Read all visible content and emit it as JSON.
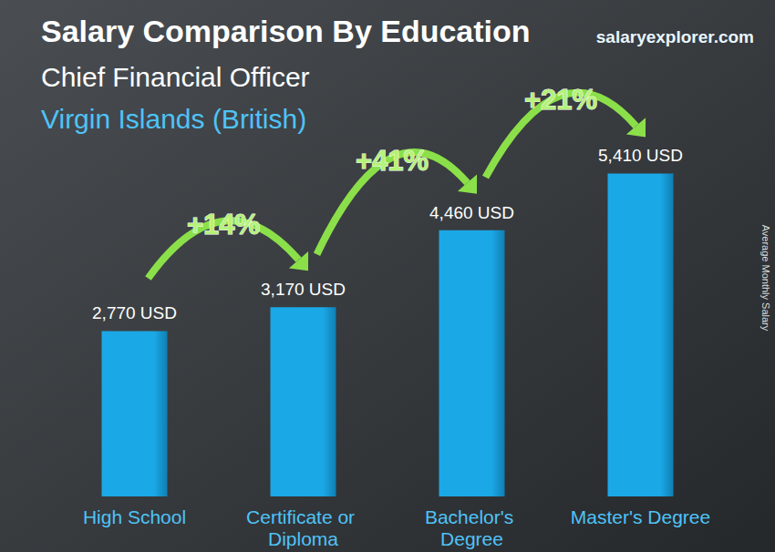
{
  "chart_data": {
    "type": "bar",
    "title": "Salary Comparison By Education",
    "subtitle": "Chief Financial Officer",
    "location": "Virgin Islands (British)",
    "source": "salaryexplorer.com",
    "y_label": "Average Monthly Salary",
    "categories": [
      "High School",
      "Certificate or Diploma",
      "Bachelor's Degree",
      "Master's Degree"
    ],
    "values": [
      2770,
      3170,
      4460,
      5410
    ],
    "value_labels": [
      "2,770 USD",
      "3,170 USD",
      "4,460 USD",
      "5,410 USD"
    ],
    "color": "#1ba8e6",
    "ylim": [
      0,
      6500
    ],
    "data_labels": true,
    "tick_labels": "x",
    "grid": false,
    "annotations": [
      {
        "text": "+14%",
        "from": "High School",
        "to": "Certificate or Diploma"
      },
      {
        "text": "+41%",
        "from": "Certificate or Diploma",
        "to": "Bachelor's Degree"
      },
      {
        "text": "+21%",
        "from": "Bachelor's Degree",
        "to": "Master's Degree"
      }
    ]
  }
}
